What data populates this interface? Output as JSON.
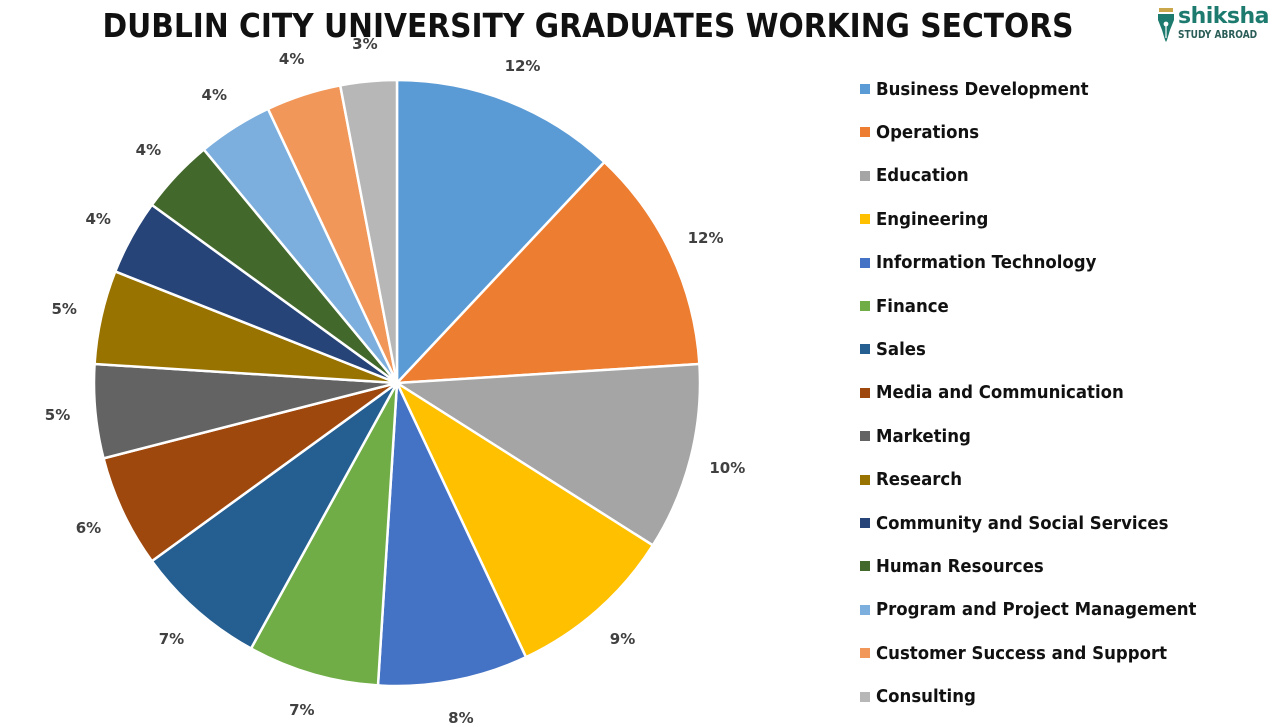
{
  "title": "DUBLIN CITY UNIVERSITY GRADUATES WORKING SECTORS",
  "logo": {
    "brand": "shiksha",
    "subtitle": "STUDY ABROAD",
    "color": "#1d7a6e"
  },
  "chart_data": {
    "type": "pie",
    "title": "DUBLIN CITY UNIVERSITY GRADUATES WORKING SECTORS",
    "unit": "%",
    "start_angle_deg": 0,
    "direction": "clockwise",
    "legend_position": "right",
    "categories": [
      "Business Development",
      "Operations",
      "Education",
      "Engineering",
      "Information Technology",
      "Finance",
      "Sales",
      "Media and Communication",
      "Marketing",
      "Research",
      "Community and Social Services",
      "Human Resources",
      "Program and Project Management",
      "Customer Success and Support",
      "Consulting"
    ],
    "values": [
      12,
      12,
      10,
      9,
      8,
      7,
      7,
      6,
      5,
      5,
      4,
      4,
      4,
      4,
      3
    ],
    "labels": [
      "12%",
      "12%",
      "10%",
      "9%",
      "8%",
      "7%",
      "7%",
      "6%",
      "5%",
      "5%",
      "4%",
      "4%",
      "4%",
      "4%",
      "3%"
    ],
    "colors": [
      "#5b9bd5",
      "#ed7d31",
      "#a5a5a5",
      "#ffc000",
      "#4472c4",
      "#70ad47",
      "#255e91",
      "#9e480e",
      "#636363",
      "#997300",
      "#264478",
      "#43682b",
      "#7cafdd",
      "#f1975a",
      "#b7b7b7"
    ]
  }
}
